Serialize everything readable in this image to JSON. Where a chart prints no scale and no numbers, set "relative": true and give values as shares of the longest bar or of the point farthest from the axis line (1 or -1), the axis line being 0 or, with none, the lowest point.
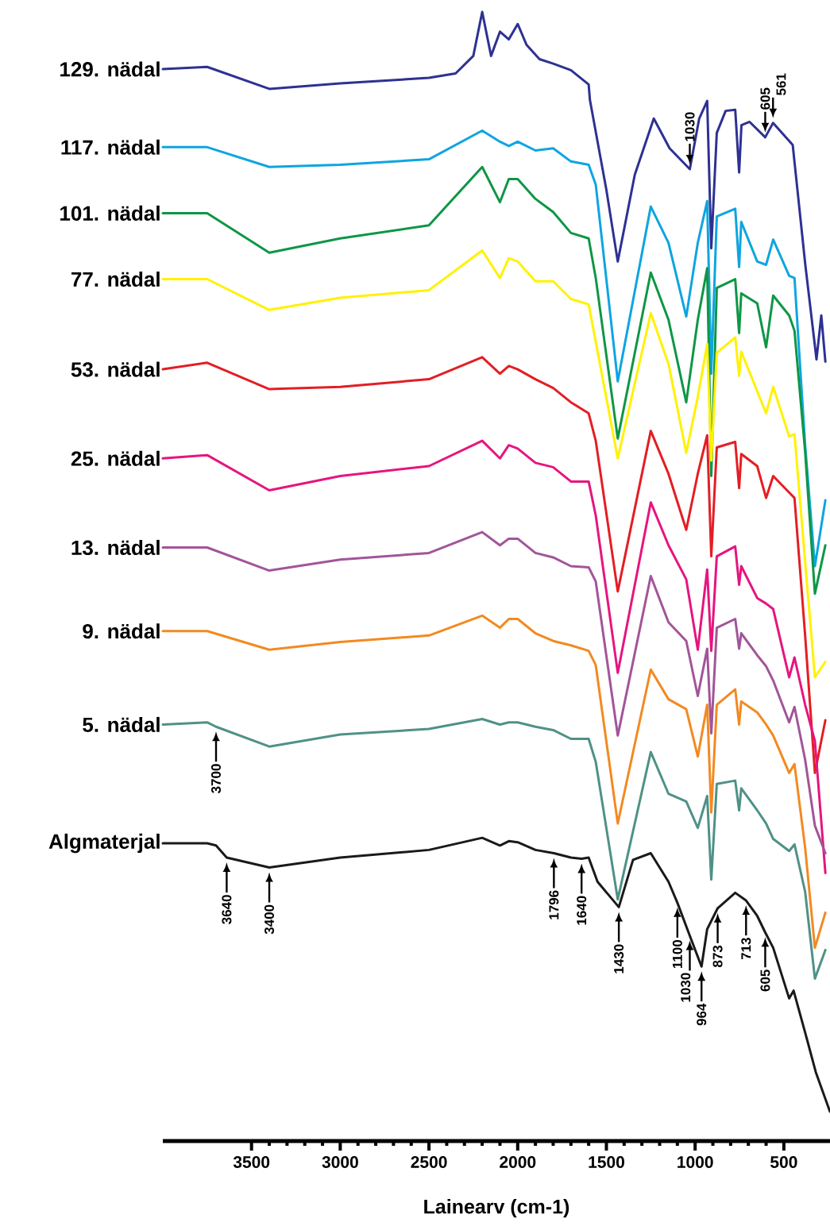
{
  "chart_data": {
    "type": "line",
    "relative": true,
    "xlabel": "Lainearv (cm-1)",
    "xlim": [
      4000,
      240
    ],
    "xticks": [
      3500,
      3000,
      2500,
      2000,
      1500,
      1000,
      500
    ],
    "series": [
      {
        "name": "129. nädal",
        "color": "#2e3192",
        "x": [
          4000,
          3750,
          3400,
          3000,
          2500,
          2350,
          2250,
          2200,
          2150,
          2100,
          2050,
          2000,
          1950,
          1877,
          1800,
          1700,
          1600,
          1593,
          1500,
          1436,
          1340,
          1233,
          1144,
          1030,
          977,
          932,
          909,
          878,
          828,
          774,
          752,
          739,
          693,
          605,
          561,
          450,
          379,
          316,
          289,
          266
        ],
        "values": [
          0.948,
          0.95,
          0.93,
          0.935,
          0.94,
          0.944,
          0.96,
          1.0,
          0.96,
          0.982,
          0.975,
          0.989,
          0.97,
          0.957,
          0.953,
          0.947,
          0.934,
          0.92,
          0.838,
          0.773,
          0.852,
          0.903,
          0.876,
          0.857,
          0.903,
          0.919,
          0.785,
          0.89,
          0.91,
          0.911,
          0.854,
          0.897,
          0.9,
          0.886,
          0.899,
          0.879,
          0.77,
          0.684,
          0.724,
          0.682
        ]
      },
      {
        "name": "117. nädal",
        "color": "#0ea5e0",
        "x": [
          4000,
          3750,
          3400,
          3000,
          2500,
          2200,
          2100,
          2050,
          2000,
          1900,
          1800,
          1700,
          1600,
          1560,
          1436,
          1250,
          1150,
          1050,
          985,
          932,
          909,
          878,
          774,
          752,
          740,
          650,
          600,
          560,
          470,
          440,
          380,
          325,
          266
        ],
        "values": [
          0.877,
          0.877,
          0.859,
          0.861,
          0.866,
          0.892,
          0.882,
          0.878,
          0.882,
          0.874,
          0.876,
          0.864,
          0.861,
          0.843,
          0.664,
          0.823,
          0.79,
          0.723,
          0.79,
          0.828,
          0.671,
          0.814,
          0.821,
          0.768,
          0.809,
          0.773,
          0.77,
          0.793,
          0.76,
          0.758,
          0.606,
          0.496,
          0.556
        ]
      },
      {
        "name": "101. nädal",
        "color": "#0f9645",
        "x": [
          4000,
          3750,
          3400,
          3000,
          2500,
          2200,
          2100,
          2050,
          2000,
          1900,
          1800,
          1700,
          1600,
          1560,
          1436,
          1250,
          1150,
          1050,
          985,
          932,
          909,
          878,
          774,
          752,
          740,
          650,
          600,
          560,
          470,
          440,
          380,
          325,
          266
        ],
        "values": [
          0.817,
          0.817,
          0.781,
          0.794,
          0.806,
          0.859,
          0.827,
          0.848,
          0.848,
          0.83,
          0.818,
          0.799,
          0.794,
          0.758,
          0.612,
          0.763,
          0.72,
          0.645,
          0.72,
          0.767,
          0.578,
          0.749,
          0.757,
          0.708,
          0.744,
          0.735,
          0.695,
          0.742,
          0.724,
          0.71,
          0.6,
          0.471,
          0.515
        ]
      },
      {
        "name": "77. nädal",
        "color": "#fff200",
        "x": [
          4000,
          3750,
          3400,
          3000,
          2500,
          2200,
          2100,
          2050,
          2000,
          1900,
          1800,
          1700,
          1600,
          1560,
          1436,
          1250,
          1150,
          1050,
          985,
          932,
          909,
          878,
          774,
          752,
          740,
          650,
          600,
          560,
          470,
          440,
          380,
          325,
          266
        ],
        "values": [
          0.757,
          0.757,
          0.729,
          0.74,
          0.747,
          0.783,
          0.758,
          0.776,
          0.773,
          0.755,
          0.755,
          0.739,
          0.734,
          0.7,
          0.594,
          0.726,
          0.68,
          0.599,
          0.65,
          0.698,
          0.592,
          0.69,
          0.704,
          0.669,
          0.691,
          0.655,
          0.635,
          0.659,
          0.614,
          0.616,
          0.5,
          0.395,
          0.409
        ]
      },
      {
        "name": "53. nädal",
        "color": "#e31e24",
        "x": [
          4000,
          3750,
          3400,
          3000,
          2500,
          2200,
          2100,
          2050,
          2000,
          1900,
          1800,
          1700,
          1600,
          1560,
          1436,
          1250,
          1150,
          1050,
          985,
          932,
          909,
          878,
          774,
          752,
          740,
          650,
          600,
          560,
          470,
          440,
          380,
          325,
          266
        ],
        "values": [
          0.675,
          0.681,
          0.657,
          0.659,
          0.666,
          0.686,
          0.671,
          0.678,
          0.675,
          0.666,
          0.658,
          0.645,
          0.635,
          0.61,
          0.473,
          0.619,
          0.58,
          0.529,
          0.58,
          0.615,
          0.505,
          0.604,
          0.609,
          0.567,
          0.598,
          0.587,
          0.558,
          0.578,
          0.563,
          0.558,
          0.433,
          0.308,
          0.356
        ]
      },
      {
        "name": "25. nädal",
        "color": "#e6157f",
        "x": [
          4000,
          3750,
          3400,
          3000,
          2500,
          2200,
          2100,
          2050,
          2000,
          1900,
          1800,
          1700,
          1600,
          1560,
          1436,
          1250,
          1150,
          1050,
          985,
          932,
          909,
          878,
          774,
          752,
          740,
          650,
          600,
          560,
          470,
          440,
          380,
          325,
          266
        ],
        "values": [
          0.594,
          0.597,
          0.565,
          0.578,
          0.587,
          0.61,
          0.594,
          0.606,
          0.603,
          0.59,
          0.586,
          0.573,
          0.573,
          0.542,
          0.399,
          0.554,
          0.515,
          0.484,
          0.42,
          0.493,
          0.419,
          0.505,
          0.514,
          0.479,
          0.496,
          0.467,
          0.462,
          0.457,
          0.395,
          0.413,
          0.37,
          0.337,
          0.217
        ]
      },
      {
        "name": "13. nädal",
        "color": "#a25599",
        "x": [
          4000,
          3750,
          3400,
          3000,
          2500,
          2200,
          2100,
          2050,
          2000,
          1900,
          1800,
          1700,
          1600,
          1560,
          1436,
          1250,
          1150,
          1050,
          985,
          932,
          909,
          878,
          774,
          752,
          740,
          650,
          600,
          560,
          470,
          440,
          380,
          325,
          266
        ],
        "values": [
          0.513,
          0.513,
          0.492,
          0.502,
          0.508,
          0.527,
          0.515,
          0.521,
          0.521,
          0.508,
          0.504,
          0.496,
          0.495,
          0.482,
          0.342,
          0.487,
          0.445,
          0.428,
          0.378,
          0.421,
          0.344,
          0.44,
          0.448,
          0.421,
          0.435,
          0.415,
          0.405,
          0.392,
          0.354,
          0.368,
          0.32,
          0.26,
          0.235
        ]
      },
      {
        "name": "9. nädal",
        "color": "#f28a21",
        "x": [
          4000,
          3750,
          3400,
          3000,
          2500,
          2200,
          2100,
          2050,
          2000,
          1900,
          1800,
          1700,
          1600,
          1560,
          1436,
          1250,
          1150,
          1050,
          985,
          932,
          909,
          878,
          774,
          752,
          740,
          650,
          600,
          560,
          470,
          440,
          380,
          325,
          266
        ],
        "values": [
          0.437,
          0.437,
          0.42,
          0.427,
          0.433,
          0.451,
          0.44,
          0.448,
          0.448,
          0.435,
          0.428,
          0.424,
          0.419,
          0.406,
          0.262,
          0.402,
          0.375,
          0.366,
          0.323,
          0.37,
          0.272,
          0.37,
          0.384,
          0.352,
          0.373,
          0.363,
          0.352,
          0.342,
          0.308,
          0.316,
          0.24,
          0.149,
          0.181
        ]
      },
      {
        "name": "5. nädal",
        "color": "#4f9187",
        "x": [
          4000,
          3750,
          3700,
          3400,
          3000,
          2500,
          2200,
          2100,
          2050,
          2000,
          1900,
          1800,
          1700,
          1600,
          1560,
          1436,
          1250,
          1150,
          1050,
          985,
          932,
          909,
          878,
          774,
          752,
          740,
          650,
          600,
          560,
          470,
          440,
          380,
          325,
          266
        ],
        "values": [
          0.352,
          0.354,
          0.35,
          0.332,
          0.343,
          0.348,
          0.357,
          0.352,
          0.354,
          0.354,
          0.35,
          0.347,
          0.339,
          0.339,
          0.318,
          0.193,
          0.327,
          0.289,
          0.282,
          0.258,
          0.287,
          0.211,
          0.298,
          0.301,
          0.274,
          0.294,
          0.274,
          0.262,
          0.248,
          0.237,
          0.243,
          0.2,
          0.121,
          0.147
        ]
      },
      {
        "name": "Algmaterjal",
        "color": "#1a1a1a",
        "x": [
          4000,
          3750,
          3700,
          3640,
          3400,
          3000,
          2500,
          2200,
          2100,
          2050,
          2000,
          1900,
          1796,
          1700,
          1640,
          1600,
          1550,
          1430,
          1350,
          1250,
          1150,
          1100,
          1030,
          964,
          932,
          873,
          774,
          713,
          650,
          605,
          560,
          470,
          445,
          380,
          320,
          240
        ],
        "values": [
          0.244,
          0.244,
          0.242,
          0.231,
          0.222,
          0.231,
          0.238,
          0.249,
          0.242,
          0.246,
          0.245,
          0.238,
          0.235,
          0.231,
          0.23,
          0.231,
          0.209,
          0.186,
          0.229,
          0.235,
          0.209,
          0.19,
          0.16,
          0.132,
          0.166,
          0.185,
          0.199,
          0.192,
          0.178,
          0.163,
          0.149,
          0.103,
          0.11,
          0.072,
          0.036,
          0.0
        ]
      }
    ],
    "annotations": [
      {
        "text": "3640",
        "x": 3640,
        "y": 0.231
      },
      {
        "text": "3400",
        "x": 3400,
        "y": 0.222
      },
      {
        "text": "1796",
        "x": 1796,
        "y": 0.235
      },
      {
        "text": "1640",
        "x": 1640,
        "y": 0.23
      },
      {
        "text": "1430",
        "x": 1430,
        "y": 0.186
      },
      {
        "text": "1100",
        "x": 1100,
        "y": 0.19
      },
      {
        "text": "964",
        "x": 964,
        "y": 0.132
      },
      {
        "text": "873",
        "x": 873,
        "y": 0.185
      },
      {
        "text": "713",
        "x": 713,
        "y": 0.192
      },
      {
        "text": "3700",
        "x": 3700,
        "y": 0.35
      },
      {
        "text": "1030",
        "x": 1030,
        "y": 0.16
      },
      {
        "text": "605",
        "x": 605,
        "y": 0.163
      },
      {
        "text": "1030",
        "x": 1030,
        "y": 0.857
      },
      {
        "text": "605",
        "x": 605,
        "y": 0.886
      },
      {
        "text": "561",
        "x": 561,
        "y": 0.899
      }
    ]
  }
}
